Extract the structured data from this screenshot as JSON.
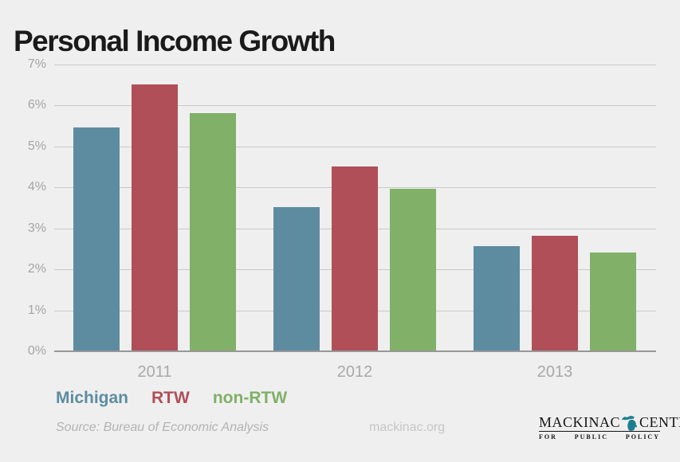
{
  "title": "Personal Income Growth",
  "colors": {
    "background": "#efefef",
    "michigan_blue": "#5d8ca1",
    "rtw_red": "#b04f58",
    "non_rtw_green": "#81b068",
    "gridline": "#c9c9c9",
    "axis_line": "#979797",
    "tick_text": "#a5a5a5",
    "logo_teal": "#1d7d90"
  },
  "chart_data": {
    "type": "bar",
    "title": "Personal Income Growth",
    "categories": [
      "2011",
      "2012",
      "2013"
    ],
    "series": [
      {
        "name": "Michigan",
        "color": "#5d8ca1",
        "values": [
          5.45,
          3.5,
          2.55
        ]
      },
      {
        "name": "RTW",
        "color": "#b04f58",
        "values": [
          6.5,
          4.5,
          2.8
        ]
      },
      {
        "name": "non-RTW",
        "color": "#81b068",
        "values": [
          5.8,
          3.95,
          2.4
        ]
      }
    ],
    "xlabel": "",
    "ylabel": "",
    "ylim": [
      0,
      7
    ],
    "yticks": [
      "0%",
      "1%",
      "2%",
      "3%",
      "4%",
      "5%",
      "6%",
      "7%"
    ],
    "grid": true,
    "legend_position": "bottom-left"
  },
  "legend": {
    "items": [
      {
        "label": "Michigan",
        "color": "#5d8ca1"
      },
      {
        "label": "RTW",
        "color": "#b04f58"
      },
      {
        "label": "non-RTW",
        "color": "#81b068"
      }
    ]
  },
  "footer": {
    "source": "Source: Bureau of Economic Analysis",
    "url": "mackinac.org"
  },
  "logo": {
    "name_left": "MACKINAC",
    "name_right": "CENTER",
    "tagline_words": [
      "FOR",
      "PUBLIC",
      "POLICY"
    ],
    "map_icon": "michigan-map-icon"
  }
}
